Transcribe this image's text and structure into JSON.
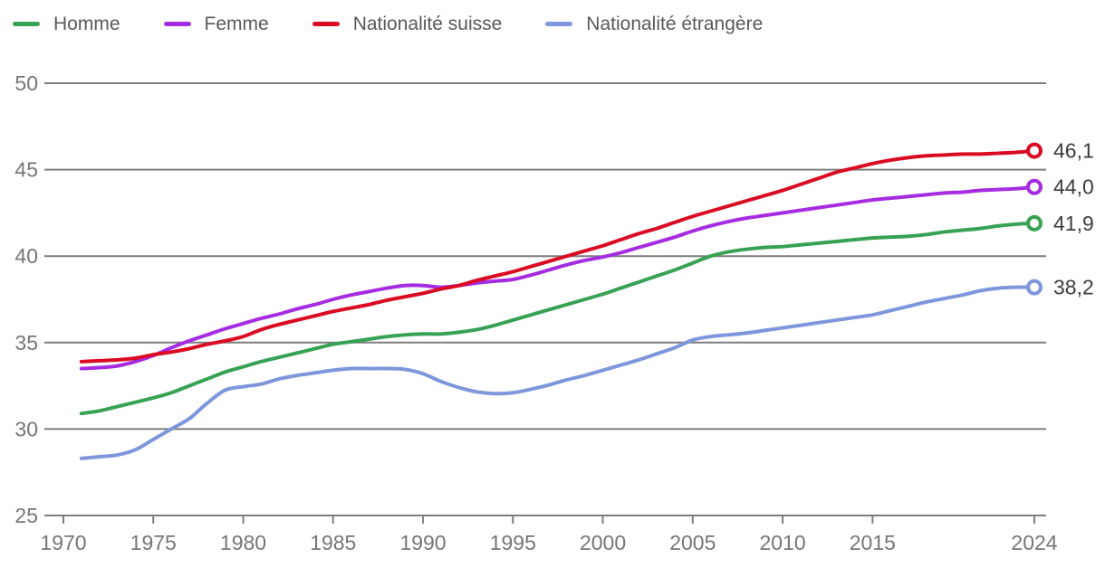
{
  "legend": {
    "items": [
      {
        "id": "homme",
        "label": "Homme",
        "color": "#38a254"
      },
      {
        "id": "femme",
        "label": "Femme",
        "color": "#a62ce2"
      },
      {
        "id": "suisse",
        "label": "Nationalité suisse",
        "color": "#db0a23"
      },
      {
        "id": "etrangere",
        "label": "Nationalité étrangère",
        "color": "#7d96dc"
      }
    ]
  },
  "axes": {
    "y_tick_labels": [
      "50",
      "45",
      "40",
      "35",
      "30",
      "25"
    ],
    "x_tick_labels": [
      "1970",
      "1975",
      "1980",
      "1985",
      "1990",
      "1995",
      "2000",
      "2005",
      "2010",
      "2015",
      "2024"
    ]
  },
  "colors": {
    "gridline": "#7d7d7d",
    "axis_label": "#767676",
    "end_label": "#3d3d3d",
    "legend_label": "#595959",
    "background": "#ffffff"
  },
  "chart_data": {
    "type": "line",
    "title": "",
    "xlabel": "",
    "ylabel": "",
    "xlim": [
      1970,
      2024
    ],
    "ylim": [
      25,
      50
    ],
    "y_ticks": [
      25,
      30,
      35,
      40,
      45,
      50
    ],
    "x_ticks": [
      1970,
      1975,
      1980,
      1985,
      1990,
      1995,
      2000,
      2005,
      2010,
      2015,
      2024
    ],
    "grid": "horizontal",
    "legend_position": "top",
    "marker": "open-circle-at-last-point",
    "x": [
      1971,
      1972,
      1973,
      1974,
      1975,
      1976,
      1977,
      1978,
      1979,
      1980,
      1981,
      1982,
      1983,
      1984,
      1985,
      1986,
      1987,
      1988,
      1989,
      1990,
      1991,
      1992,
      1993,
      1994,
      1995,
      1996,
      1997,
      1998,
      1999,
      2000,
      2001,
      2002,
      2003,
      2004,
      2005,
      2006,
      2007,
      2008,
      2009,
      2010,
      2011,
      2012,
      2013,
      2014,
      2015,
      2016,
      2017,
      2018,
      2019,
      2020,
      2021,
      2022,
      2023,
      2024
    ],
    "series": [
      {
        "id": "homme",
        "name": "Homme",
        "color": "#38a254",
        "end_label": "41,9",
        "end_value": 41.9,
        "values": [
          30.9,
          31.05,
          31.3,
          31.55,
          31.8,
          32.1,
          32.5,
          32.9,
          33.3,
          33.6,
          33.9,
          34.15,
          34.4,
          34.65,
          34.9,
          35.05,
          35.2,
          35.35,
          35.45,
          35.5,
          35.5,
          35.6,
          35.75,
          36.0,
          36.3,
          36.6,
          36.9,
          37.2,
          37.5,
          37.8,
          38.15,
          38.5,
          38.85,
          39.2,
          39.6,
          40.0,
          40.25,
          40.4,
          40.5,
          40.55,
          40.65,
          40.75,
          40.85,
          40.95,
          41.05,
          41.1,
          41.15,
          41.25,
          41.4,
          41.5,
          41.6,
          41.75,
          41.85,
          41.9
        ]
      },
      {
        "id": "femme",
        "name": "Femme",
        "color": "#a62ce2",
        "end_label": "44,0",
        "end_value": 44.0,
        "values": [
          33.5,
          33.55,
          33.65,
          33.9,
          34.25,
          34.7,
          35.1,
          35.45,
          35.8,
          36.1,
          36.4,
          36.65,
          36.95,
          37.2,
          37.5,
          37.75,
          37.95,
          38.15,
          38.3,
          38.3,
          38.2,
          38.3,
          38.45,
          38.55,
          38.65,
          38.9,
          39.2,
          39.5,
          39.75,
          39.95,
          40.2,
          40.5,
          40.8,
          41.1,
          41.45,
          41.75,
          42.0,
          42.2,
          42.35,
          42.5,
          42.65,
          42.8,
          42.95,
          43.1,
          43.25,
          43.35,
          43.45,
          43.55,
          43.65,
          43.7,
          43.8,
          43.85,
          43.9,
          44.0
        ]
      },
      {
        "id": "suisse",
        "name": "Nationalité suisse",
        "color": "#db0a23",
        "end_label": "46,1",
        "end_value": 46.1,
        "values": [
          33.9,
          33.95,
          34.0,
          34.1,
          34.3,
          34.45,
          34.65,
          34.9,
          35.1,
          35.35,
          35.75,
          36.05,
          36.3,
          36.55,
          36.8,
          37.0,
          37.2,
          37.45,
          37.65,
          37.85,
          38.1,
          38.3,
          38.6,
          38.85,
          39.1,
          39.4,
          39.7,
          40.0,
          40.3,
          40.6,
          40.95,
          41.3,
          41.6,
          41.95,
          42.3,
          42.6,
          42.9,
          43.2,
          43.5,
          43.8,
          44.15,
          44.5,
          44.85,
          45.1,
          45.35,
          45.55,
          45.7,
          45.8,
          45.85,
          45.9,
          45.9,
          45.95,
          46.0,
          46.1
        ]
      },
      {
        "id": "etrangere",
        "name": "Nationalité étrangère",
        "color": "#7d96dc",
        "end_label": "38,2",
        "end_value": 38.2,
        "values": [
          28.3,
          28.4,
          28.5,
          28.8,
          29.4,
          30.0,
          30.6,
          31.5,
          32.25,
          32.45,
          32.6,
          32.9,
          33.1,
          33.25,
          33.4,
          33.5,
          33.5,
          33.5,
          33.45,
          33.2,
          32.75,
          32.4,
          32.15,
          32.05,
          32.1,
          32.3,
          32.55,
          32.85,
          33.1,
          33.4,
          33.7,
          34.0,
          34.35,
          34.7,
          35.15,
          35.35,
          35.45,
          35.55,
          35.7,
          35.85,
          36.0,
          36.15,
          36.3,
          36.45,
          36.6,
          36.85,
          37.1,
          37.35,
          37.55,
          37.75,
          38.0,
          38.15,
          38.2,
          38.2
        ]
      }
    ]
  }
}
